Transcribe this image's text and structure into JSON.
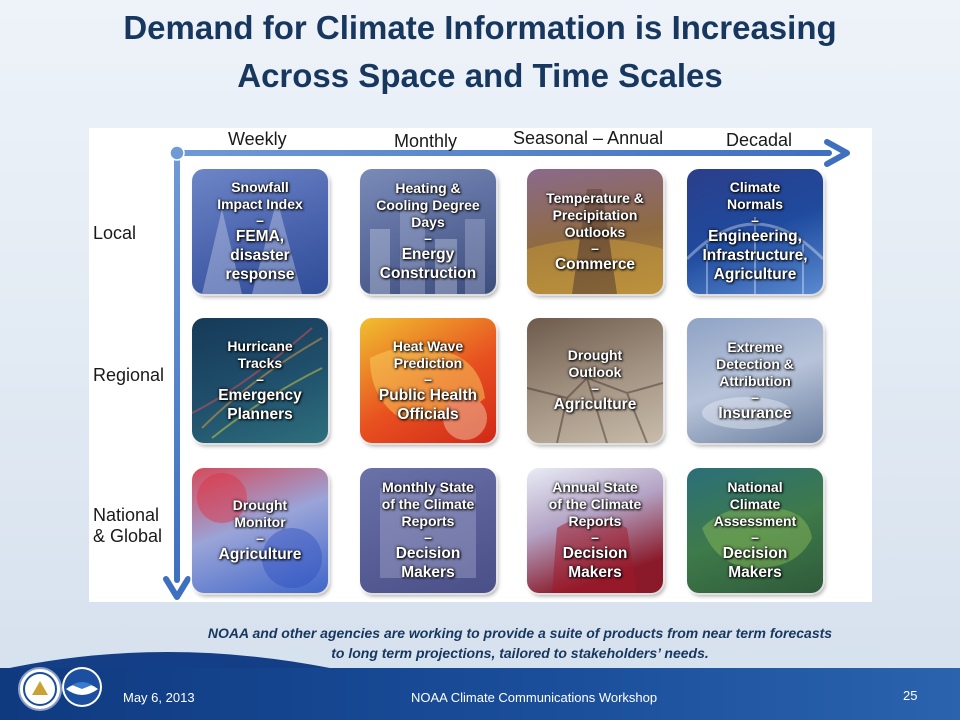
{
  "title": {
    "line1": "Demand for Climate Information is Increasing",
    "line2": "Across Space and Time Scales"
  },
  "time_scales": [
    "Weekly",
    "Monthly",
    "Seasonal – Annual",
    "Decadal"
  ],
  "space_scales": {
    "local": "Local",
    "regional": "Regional",
    "national_line1": "National",
    "national_line2": "& Global"
  },
  "tiles": [
    {
      "top": "Snowfall\nImpact Index",
      "dash": "–",
      "bottom": "FEMA,\ndisaster\nresponse"
    },
    {
      "top": "Heating &\nCooling Degree\nDays",
      "dash": "–",
      "bottom": "Energy\nConstruction"
    },
    {
      "top": "Temperature &\nPrecipitation\nOutlooks",
      "dash": "–",
      "bottom": "Commerce"
    },
    {
      "top": "Climate\nNormals",
      "dash": "–",
      "bottom": "Engineering,\nInfrastructure,\nAgriculture"
    },
    {
      "top": "Hurricane\nTracks",
      "dash": "–",
      "bottom": "Emergency\nPlanners"
    },
    {
      "top": "Heat Wave\nPrediction",
      "dash": "–",
      "bottom": "Public Health\nOfficials"
    },
    {
      "top": "Drought\nOutlook",
      "dash": "–",
      "bottom": "Agriculture"
    },
    {
      "top": "Extreme\nDetection &\nAttribution",
      "dash": "–",
      "bottom": "Insurance"
    },
    {
      "top": "Drought\nMonitor",
      "dash": "–",
      "bottom": "Agriculture"
    },
    {
      "top": "Monthly State\nof the Climate\nReports",
      "dash": "–",
      "bottom": "Decision\nMakers"
    },
    {
      "top": "Annual State\nof the Climate\nReports",
      "dash": "–",
      "bottom": "Decision\nMakers"
    },
    {
      "top": "National\nClimate\nAssessment",
      "dash": "–",
      "bottom": "Decision\nMakers"
    }
  ],
  "caption": {
    "line1": "NOAA and other agencies are working to provide a suite of products from near term forecasts",
    "line2": "to long term projections, tailored to stakeholders’ needs."
  },
  "footer": {
    "date": "May 6, 2013",
    "event": "NOAA Climate Communications Workshop",
    "page_number": "25"
  },
  "colors": {
    "title": "#17375e",
    "axis": "#4a7bc8",
    "footer": "#1b4f9c"
  },
  "icons": {
    "seal_left": "department-of-commerce-seal",
    "seal_right": "noaa-logo"
  }
}
